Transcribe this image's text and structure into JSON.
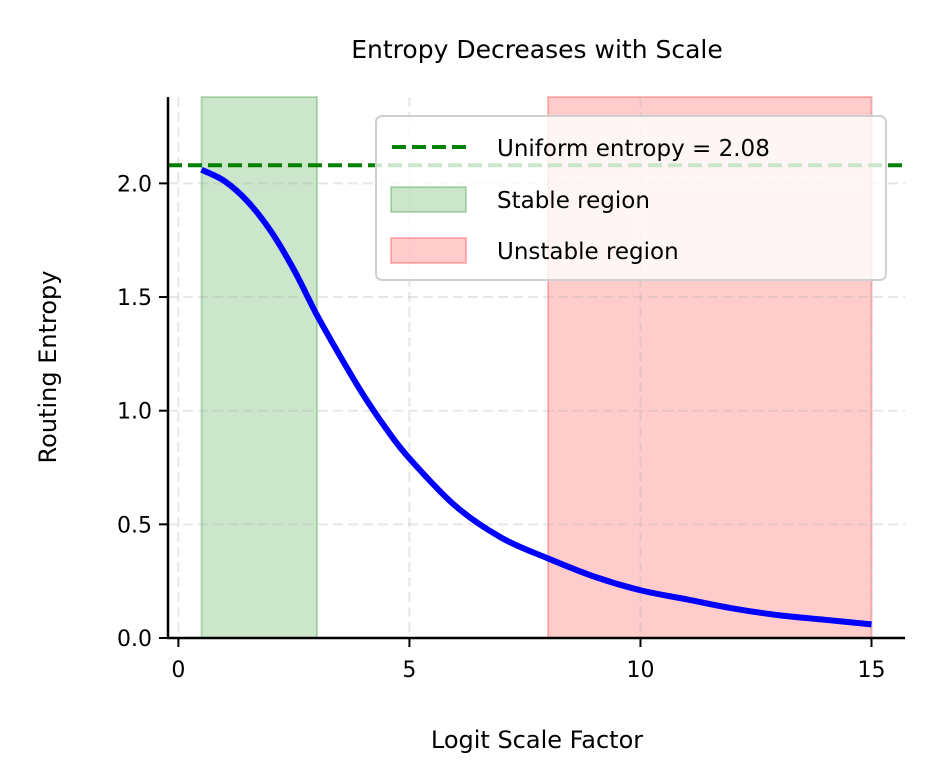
{
  "chart_data": {
    "type": "line",
    "title": "Entropy Decreases with Scale",
    "xlabel": "Logit Scale Factor",
    "ylabel": "Routing Entropy",
    "xlim": [
      -0.225,
      15.725
    ],
    "ylim": [
      0,
      2.38
    ],
    "xticks": [
      0,
      5,
      10,
      15
    ],
    "xtick_labels": [
      "0",
      "5",
      "10",
      "15"
    ],
    "yticks": [
      0,
      0.5,
      1.0,
      1.5,
      2.0
    ],
    "ytick_labels": [
      "0.0",
      "0.5",
      "1.0",
      "1.5",
      "2.0"
    ],
    "grid": true,
    "legend_position": "top-right",
    "series": [
      {
        "color": "#0000ff",
        "x": [
          0.5,
          1,
          1.5,
          2,
          2.5,
          3,
          3.5,
          4,
          4.5,
          5,
          6,
          7,
          8,
          9,
          10,
          11,
          12,
          13,
          14,
          15
        ],
        "y": [
          2.06,
          2.01,
          1.92,
          1.79,
          1.62,
          1.42,
          1.24,
          1.07,
          0.92,
          0.79,
          0.58,
          0.44,
          0.35,
          0.27,
          0.21,
          0.17,
          0.13,
          0.1,
          0.08,
          0.06
        ]
      }
    ],
    "hlines": [
      {
        "name": "Uniform entropy = 2.08",
        "y": 2.08,
        "color": "#008000",
        "style": "dashed"
      }
    ],
    "spans": [
      {
        "name": "Stable region",
        "x0": 0.5,
        "x1": 3,
        "color": "#008000"
      },
      {
        "name": "Unstable region",
        "x0": 8,
        "x1": 15,
        "color": "#ff0000"
      }
    ]
  }
}
